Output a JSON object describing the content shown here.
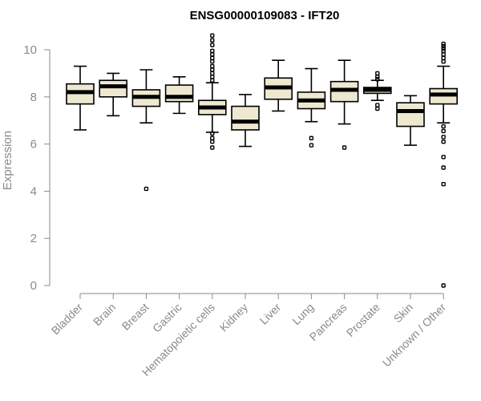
{
  "chart_data": {
    "type": "boxplot",
    "title": "ENSG00000109083 - IFT20",
    "xlabel": "",
    "ylabel": "Expression",
    "ylim": [
      0,
      10
    ],
    "yticks": [
      0,
      2,
      4,
      6,
      8,
      10
    ],
    "grid": false,
    "legend": "none",
    "box_fill": "#ede8cf",
    "categories": [
      "Bladder",
      "Brain",
      "Breast",
      "Gastric",
      "Hematopoietic cells",
      "Kidney",
      "Liver",
      "Lung",
      "Pancreas",
      "Prostate",
      "Skin",
      "Unknown / Other"
    ],
    "boxes": [
      {
        "category": "Bladder",
        "whisker_low": 6.6,
        "q1": 7.7,
        "median": 8.2,
        "q3": 8.55,
        "whisker_high": 9.3,
        "outliers": []
      },
      {
        "category": "Brain",
        "whisker_low": 7.2,
        "q1": 8.0,
        "median": 8.45,
        "q3": 8.7,
        "whisker_high": 9.0,
        "outliers": []
      },
      {
        "category": "Breast",
        "whisker_low": 6.9,
        "q1": 7.6,
        "median": 8.0,
        "q3": 8.3,
        "whisker_high": 9.15,
        "outliers": [
          4.1
        ]
      },
      {
        "category": "Gastric",
        "whisker_low": 7.3,
        "q1": 7.8,
        "median": 8.0,
        "q3": 8.5,
        "whisker_high": 8.85,
        "outliers": []
      },
      {
        "category": "Hematopoietic cells",
        "whisker_low": 6.5,
        "q1": 7.25,
        "median": 7.55,
        "q3": 7.85,
        "whisker_high": 8.6,
        "outliers": [
          5.85,
          6.1,
          6.25,
          6.45,
          8.7,
          8.85,
          9.0,
          9.15,
          9.3,
          9.5,
          9.65,
          9.8,
          9.95,
          10.2,
          10.4,
          10.6
        ]
      },
      {
        "category": "Kidney",
        "whisker_low": 5.9,
        "q1": 6.6,
        "median": 6.95,
        "q3": 7.6,
        "whisker_high": 8.1,
        "outliers": []
      },
      {
        "category": "Liver",
        "whisker_low": 7.4,
        "q1": 7.9,
        "median": 8.4,
        "q3": 8.8,
        "whisker_high": 9.55,
        "outliers": []
      },
      {
        "category": "Lung",
        "whisker_low": 6.95,
        "q1": 7.5,
        "median": 7.85,
        "q3": 8.2,
        "whisker_high": 9.2,
        "outliers": [
          5.95,
          6.25
        ]
      },
      {
        "category": "Pancreas",
        "whisker_low": 6.85,
        "q1": 7.8,
        "median": 8.3,
        "q3": 8.65,
        "whisker_high": 9.55,
        "outliers": [
          5.85
        ]
      },
      {
        "category": "Prostate",
        "whisker_low": 7.85,
        "q1": 8.15,
        "median": 8.3,
        "q3": 8.4,
        "whisker_high": 8.7,
        "outliers": [
          7.5,
          7.65,
          8.75,
          8.85,
          9.0
        ]
      },
      {
        "category": "Skin",
        "whisker_low": 5.95,
        "q1": 6.75,
        "median": 7.4,
        "q3": 7.75,
        "whisker_high": 8.05,
        "outliers": []
      },
      {
        "category": "Unknown / Other",
        "whisker_low": 6.9,
        "q1": 7.7,
        "median": 8.1,
        "q3": 8.35,
        "whisker_high": 9.3,
        "outliers": [
          0.0,
          4.3,
          5.0,
          5.45,
          6.1,
          6.3,
          6.55,
          6.75,
          9.5,
          9.65,
          9.8,
          9.95,
          10.05,
          10.15,
          10.25
        ]
      }
    ]
  }
}
